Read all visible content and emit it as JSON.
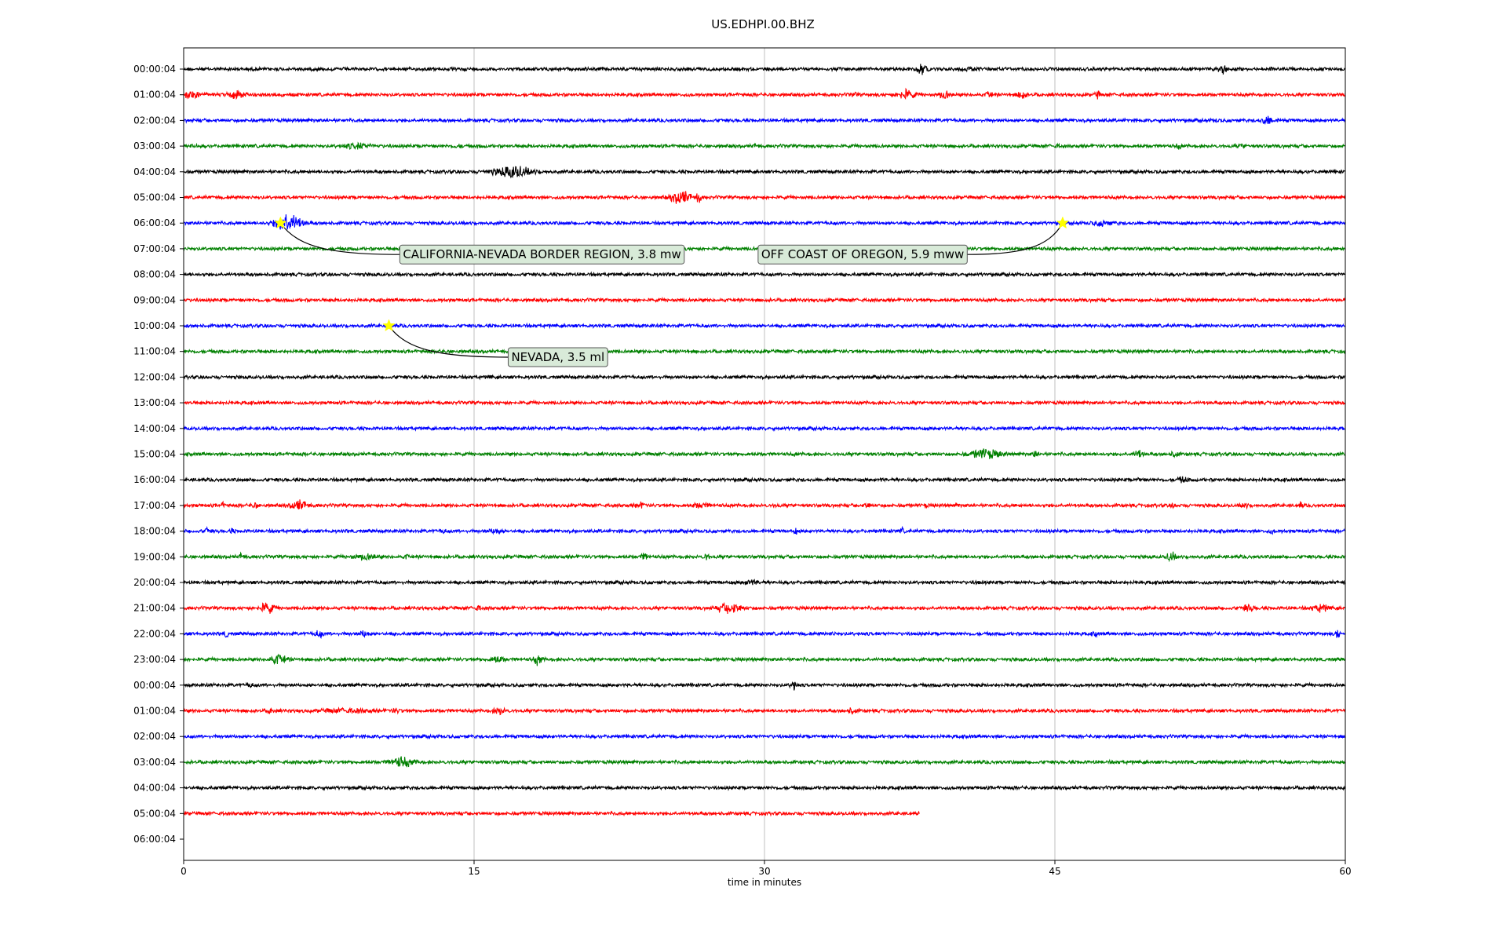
{
  "chart_data": {
    "type": "line",
    "title": "US.EDHPI.00.BHZ",
    "xlabel": "time in minutes",
    "ylabel": "",
    "xlim": [
      0,
      60
    ],
    "xticks": [
      0,
      15,
      30,
      45,
      60
    ],
    "grid": "vertical lines at x ticks",
    "legend": "none",
    "series_colors": [
      "#000000",
      "#ff0000",
      "#0000ff",
      "#008000"
    ],
    "row_labels": [
      "00:00:04",
      "01:00:04",
      "02:00:04",
      "03:00:04",
      "04:00:04",
      "05:00:04",
      "06:00:04",
      "07:00:04",
      "08:00:04",
      "09:00:04",
      "10:00:04",
      "11:00:04",
      "12:00:04",
      "13:00:04",
      "14:00:04",
      "15:00:04",
      "16:00:04",
      "17:00:04",
      "18:00:04",
      "19:00:04",
      "20:00:04",
      "21:00:04",
      "22:00:04",
      "23:00:04",
      "00:00:04",
      "01:00:04",
      "02:00:04",
      "03:00:04",
      "04:00:04",
      "05:00:04",
      "06:00:04"
    ],
    "trace_end_minute": [
      60,
      60,
      60,
      60,
      60,
      60,
      60,
      60,
      60,
      60,
      60,
      60,
      60,
      60,
      60,
      60,
      60,
      60,
      60,
      60,
      60,
      60,
      60,
      60,
      60,
      60,
      60,
      60,
      60,
      38,
      0
    ],
    "bursts": [
      [
        [
          38.1,
          0.8,
          6
        ],
        [
          40.5,
          1.5,
          1.5
        ],
        [
          53.7,
          0.6,
          7
        ]
      ],
      [
        [
          0.4,
          1.2,
          4
        ],
        [
          2.7,
          1.2,
          5
        ],
        [
          34.6,
          0.5,
          2
        ],
        [
          37.3,
          1.2,
          6
        ],
        [
          39.3,
          0.7,
          5
        ],
        [
          41.6,
          0.4,
          5
        ],
        [
          43.3,
          0.6,
          6
        ],
        [
          47.2,
          0.3,
          5
        ]
      ],
      [
        [
          53.3,
          0.3,
          2
        ],
        [
          56.0,
          0.8,
          6
        ]
      ],
      [
        [
          0.5,
          0.4,
          2
        ],
        [
          9.0,
          2.0,
          3
        ],
        [
          14.2,
          0.5,
          1.5
        ],
        [
          29.6,
          0.5,
          1.5
        ],
        [
          45.1,
          0.4,
          1.5
        ],
        [
          51.4,
          0.4,
          3
        ],
        [
          54.6,
          0.7,
          1.5
        ]
      ],
      [
        [
          17.0,
          2.8,
          7
        ]
      ],
      [
        [
          25.7,
          1.5,
          8
        ],
        [
          26.6,
          0.3,
          9
        ]
      ],
      [
        [
          5.4,
          1.8,
          13
        ],
        [
          47.5,
          1.5,
          3
        ]
      ],
      [],
      [],
      [],
      [],
      [],
      [
        [
          15.8,
          0.3,
          1.2
        ]
      ],
      [],
      [],
      [
        [
          31.6,
          0.3,
          1.5
        ],
        [
          41.4,
          2.2,
          6
        ],
        [
          44.0,
          0.3,
          5
        ],
        [
          49.3,
          0.6,
          5
        ],
        [
          51.2,
          0.5,
          4
        ]
      ],
      [
        [
          36.0,
          0.3,
          1.5
        ],
        [
          49.4,
          0.3,
          3
        ],
        [
          51.6,
          0.8,
          3
        ]
      ],
      [
        [
          2.0,
          0.3,
          3
        ],
        [
          3.7,
          0.5,
          3
        ],
        [
          6.0,
          1.2,
          6
        ],
        [
          23.6,
          0.6,
          3
        ],
        [
          26.7,
          1.2,
          3
        ],
        [
          30.6,
          0.3,
          2
        ],
        [
          35.3,
          0.4,
          3
        ],
        [
          38.3,
          0.3,
          2
        ],
        [
          39.9,
          0.3,
          2
        ],
        [
          51.1,
          0.3,
          2
        ],
        [
          54.8,
          0.5,
          3
        ],
        [
          57.7,
          0.3,
          4
        ]
      ],
      [
        [
          1.2,
          0.4,
          4
        ],
        [
          2.5,
          0.3,
          3
        ],
        [
          13.4,
          0.4,
          2
        ],
        [
          16.1,
          1.0,
          3
        ],
        [
          31.6,
          0.3,
          3
        ],
        [
          37.1,
          0.3,
          3
        ],
        [
          56.2,
          0.3,
          2
        ]
      ],
      [
        [
          3.0,
          0.3,
          5
        ],
        [
          9.4,
          1.7,
          3
        ],
        [
          11.5,
          0.4,
          2
        ],
        [
          23.8,
          0.5,
          4
        ],
        [
          27.0,
          0.3,
          5
        ],
        [
          51.0,
          0.6,
          6
        ]
      ],
      [
        [
          29.3,
          1.0,
          3
        ],
        [
          41.0,
          0.3,
          1.5
        ]
      ],
      [
        [
          4.3,
          1.0,
          7
        ],
        [
          15.2,
          0.4,
          3
        ],
        [
          28.2,
          1.8,
          6
        ],
        [
          55.0,
          0.8,
          4
        ],
        [
          58.7,
          1.2,
          4
        ]
      ],
      [
        [
          2.2,
          0.3,
          4
        ],
        [
          7.0,
          0.6,
          4
        ],
        [
          9.3,
          0.6,
          4
        ],
        [
          33.5,
          0.3,
          2
        ],
        [
          47.1,
          0.3,
          3
        ],
        [
          59.6,
          0.3,
          7
        ]
      ],
      [
        [
          4.9,
          1.2,
          6
        ],
        [
          16.2,
          0.9,
          5
        ],
        [
          18.3,
          0.6,
          7
        ]
      ],
      [
        [
          3.4,
          0.5,
          2
        ],
        [
          31.5,
          0.4,
          7
        ]
      ],
      [
        [
          4.5,
          0.4,
          4
        ],
        [
          8.4,
          3.5,
          2
        ],
        [
          11.0,
          0.6,
          2
        ],
        [
          16.3,
          0.8,
          4
        ],
        [
          34.5,
          0.8,
          3
        ]
      ],
      [],
      [
        [
          11.3,
          1.7,
          6
        ]
      ],
      [],
      [],
      []
    ],
    "events": [
      {
        "row": 6,
        "minute": 5.0,
        "label": "CALIFORNIA-NEVADA BORDER REGION, 3.8 mw"
      },
      {
        "row": 6,
        "minute": 45.4,
        "label": "OFF COAST OF OREGON, 5.9 mww"
      },
      {
        "row": 10,
        "minute": 10.6,
        "label": "NEVADA, 3.5 ml"
      }
    ],
    "event_marker_color": "#ffff00",
    "annotation_box_color": "#d8ead8"
  }
}
